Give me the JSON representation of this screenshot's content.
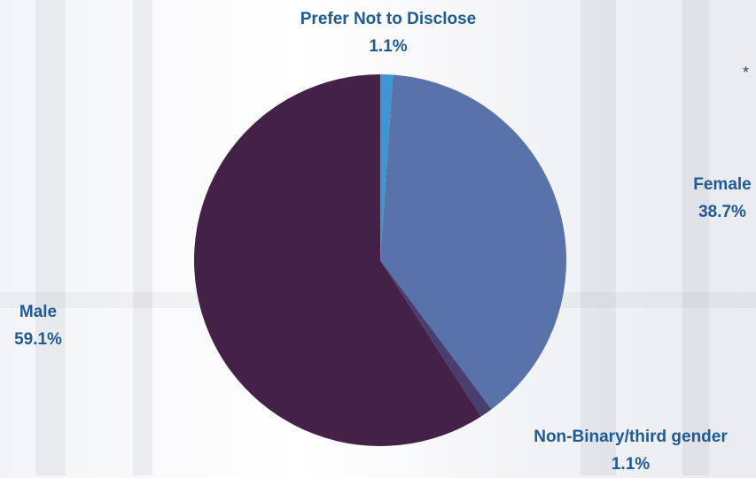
{
  "chart_data": {
    "type": "pie",
    "slices": [
      {
        "label": "Prefer Not to Disclose",
        "value": 1.1,
        "display": "1.1%",
        "color": "#3d95d1"
      },
      {
        "label": "Female",
        "value": 38.7,
        "display": "38.7%",
        "color": "#5872aa"
      },
      {
        "label": "Non-Binary/third gender",
        "value": 1.1,
        "display": "1.1%",
        "color": "#4a3e6e"
      },
      {
        "label": "Male",
        "value": 59.1,
        "display": "59.1%",
        "color": "#442247"
      }
    ],
    "label_color": "#1e5a96",
    "note": "*"
  }
}
